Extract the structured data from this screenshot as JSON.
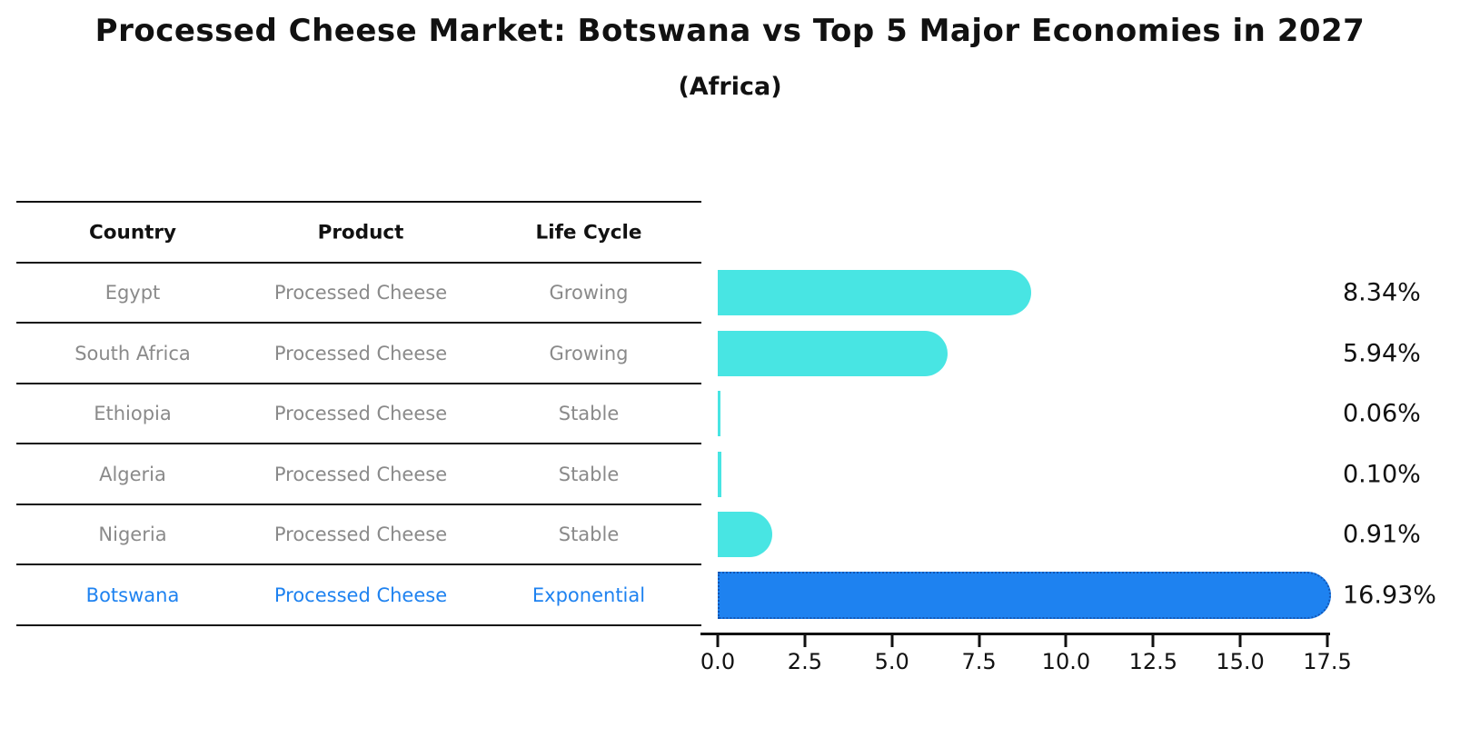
{
  "title": "Processed Cheese Market: Botswana vs Top 5 Major Economies in 2027",
  "subtitle": "(Africa)",
  "table": {
    "headers": [
      "Country",
      "Product",
      "Life Cycle"
    ],
    "rows": [
      {
        "country": "Egypt",
        "product": "Processed Cheese",
        "life_cycle": "Growing",
        "highlight": false
      },
      {
        "country": "South Africa",
        "product": "Processed Cheese",
        "life_cycle": "Growing",
        "highlight": false
      },
      {
        "country": "Ethiopia",
        "product": "Processed Cheese",
        "life_cycle": "Stable",
        "highlight": false
      },
      {
        "country": "Algeria",
        "product": "Processed Cheese",
        "life_cycle": "Stable",
        "highlight": false
      },
      {
        "country": "Nigeria",
        "product": "Processed Cheese",
        "life_cycle": "Stable",
        "highlight": false
      },
      {
        "country": "Botswana",
        "product": "Processed Cheese",
        "life_cycle": "Exponential",
        "highlight": true
      }
    ]
  },
  "chart_data": {
    "type": "bar",
    "orientation": "horizontal",
    "title": "Processed Cheese Market: Botswana vs Top 5 Major Economies in 2027",
    "subtitle": "(Africa)",
    "categories": [
      "Egypt",
      "South Africa",
      "Ethiopia",
      "Algeria",
      "Nigeria",
      "Botswana"
    ],
    "values": [
      8.34,
      5.94,
      0.06,
      0.1,
      0.91,
      16.93
    ],
    "value_labels": [
      "8.34%",
      "5.94%",
      "0.06%",
      "0.10%",
      "0.91%",
      "16.93%"
    ],
    "highlight_category": "Botswana",
    "xlim": [
      0,
      17.5
    ],
    "x_ticks": [
      0.0,
      2.5,
      5.0,
      7.5,
      10.0,
      12.5,
      15.0,
      17.5
    ],
    "x_tick_labels": [
      "0.0",
      "2.5",
      "5.0",
      "7.5",
      "10.0",
      "12.5",
      "15.0",
      "17.5"
    ],
    "xlabel": "",
    "ylabel": "",
    "grid": false,
    "legend": false,
    "colors": {
      "bar": "#48E5E3",
      "highlight_bar": "#1E82F0",
      "highlight_border": "#1356B4",
      "table_text": "#8A8A8A",
      "highlight_text": "#1E82F0",
      "axis": "#111111",
      "label_text": "#111111"
    }
  }
}
